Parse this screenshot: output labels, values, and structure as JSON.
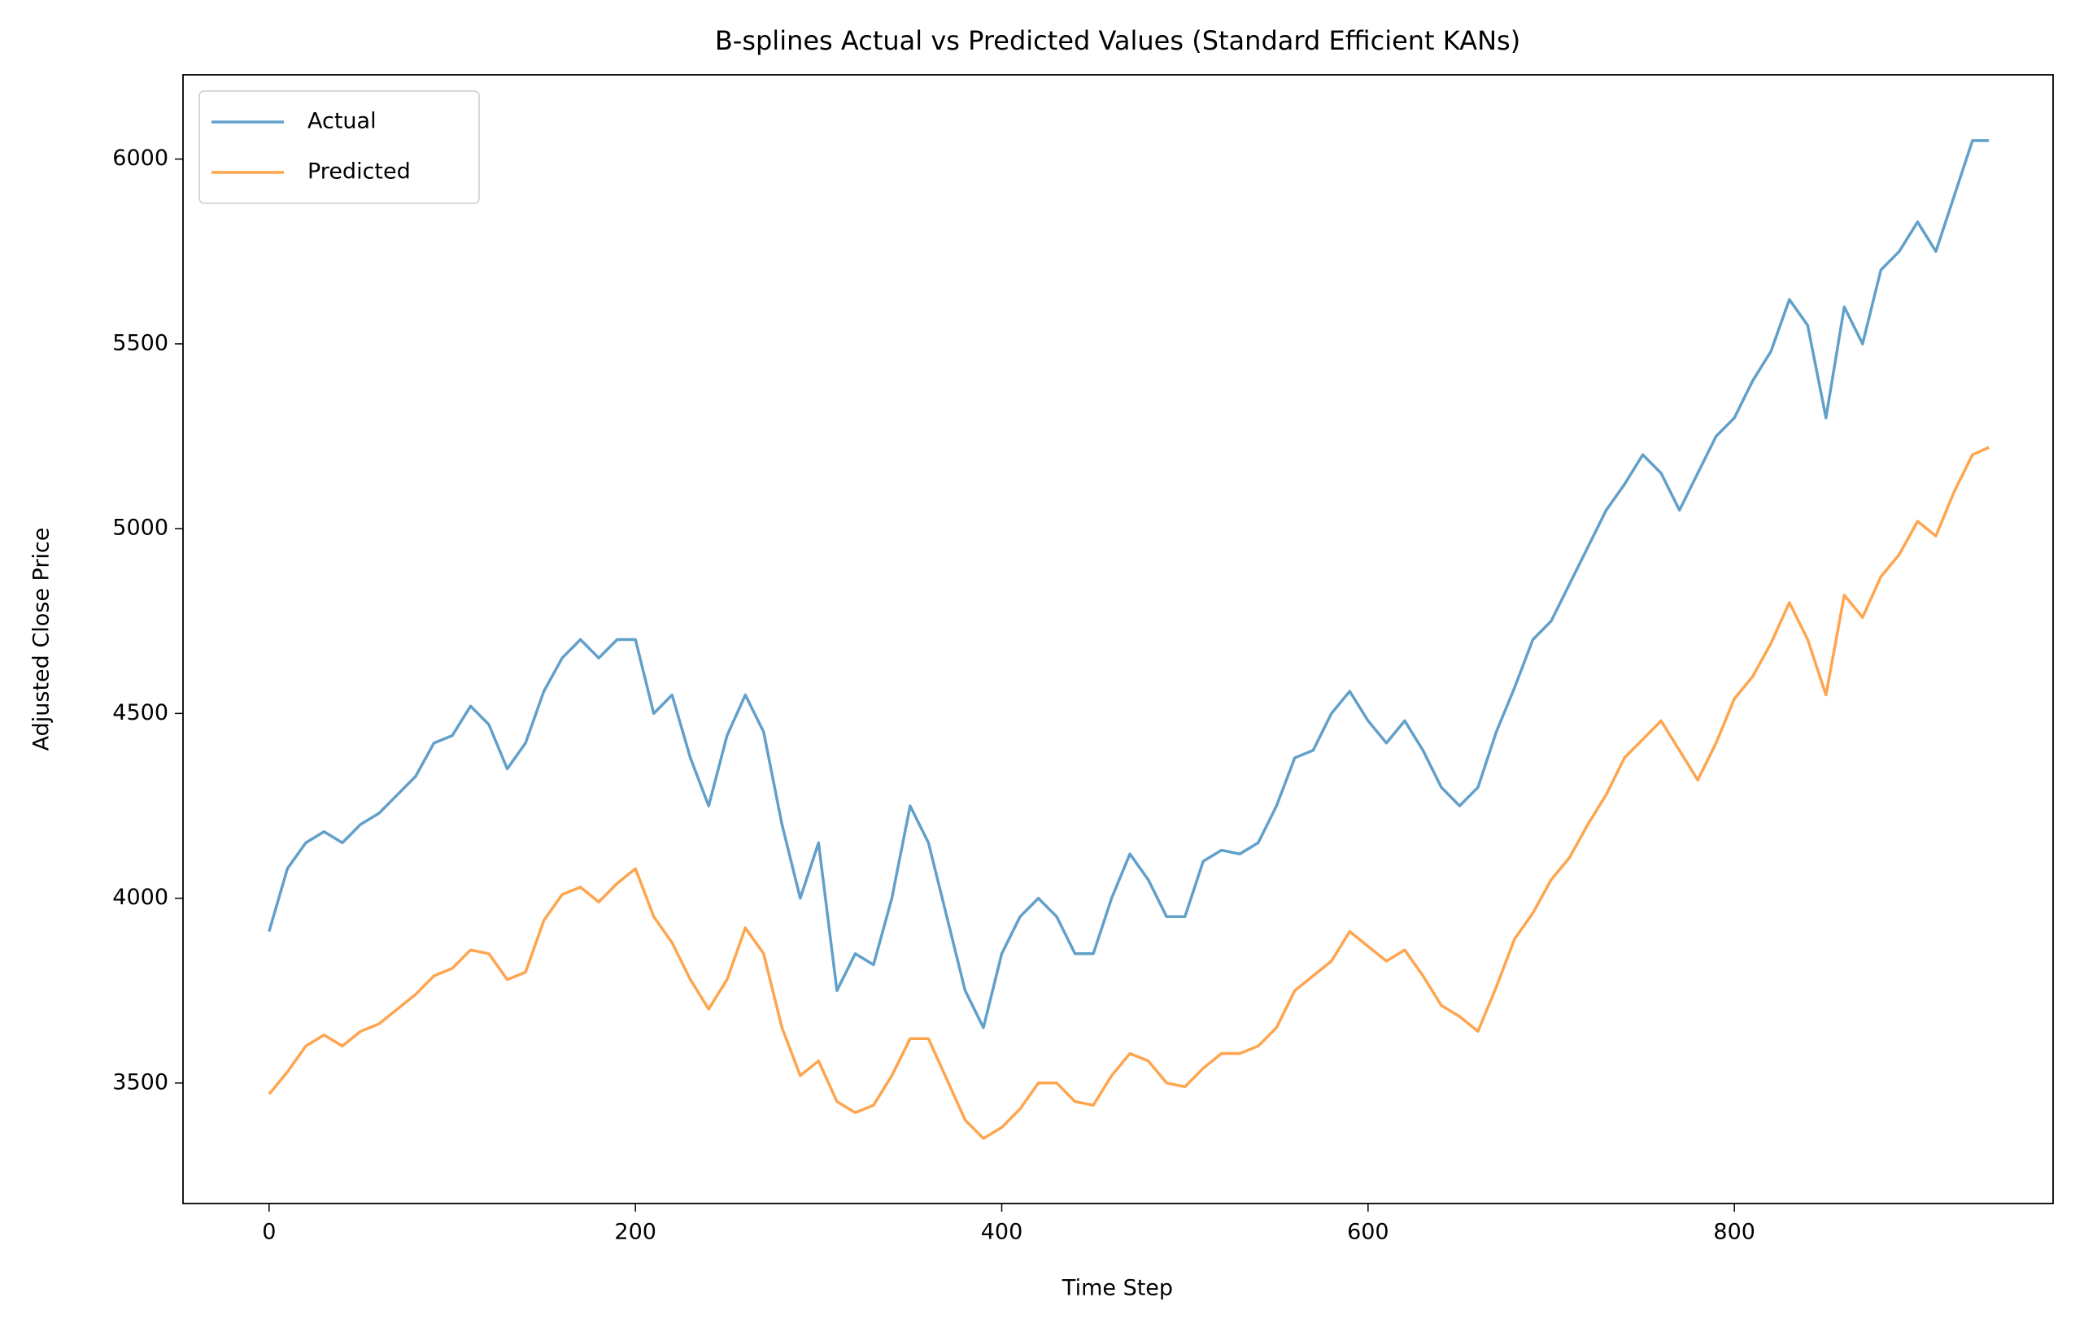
{
  "chart_data": {
    "type": "line",
    "title": "B-splines Actual vs Predicted Values (Standard Efficient KANs)",
    "xlabel": "Time Step",
    "ylabel": "Adjusted Close Price",
    "x": [
      0,
      10,
      20,
      30,
      40,
      50,
      60,
      70,
      80,
      90,
      100,
      110,
      120,
      130,
      140,
      150,
      160,
      170,
      180,
      190,
      200,
      210,
      220,
      230,
      240,
      250,
      260,
      270,
      280,
      290,
      300,
      310,
      320,
      330,
      340,
      350,
      360,
      370,
      380,
      390,
      400,
      410,
      420,
      430,
      440,
      450,
      460,
      470,
      480,
      490,
      500,
      510,
      520,
      530,
      540,
      550,
      560,
      570,
      580,
      590,
      600,
      610,
      620,
      630,
      640,
      650,
      660,
      670,
      680,
      690,
      700,
      710,
      720,
      730,
      740,
      750,
      760,
      770,
      780,
      790,
      800,
      810,
      820,
      830,
      840,
      850,
      860,
      870,
      880,
      890,
      900,
      910,
      920,
      930,
      939
    ],
    "series": [
      {
        "name": "Actual",
        "color": "#62a0ca",
        "values": [
          3910,
          4080,
          4150,
          4180,
          4150,
          4200,
          4230,
          4280,
          4330,
          4420,
          4440,
          4520,
          4470,
          4350,
          4420,
          4560,
          4650,
          4700,
          4650,
          4700,
          4700,
          4500,
          4550,
          4380,
          4250,
          4440,
          4550,
          4450,
          4200,
          4000,
          4150,
          3750,
          3850,
          3820,
          4000,
          4250,
          4150,
          3950,
          3750,
          3650,
          3850,
          3950,
          4000,
          3950,
          3850,
          3850,
          4000,
          4120,
          4050,
          3950,
          3950,
          4100,
          4130,
          4120,
          4150,
          4250,
          4380,
          4400,
          4500,
          4560,
          4480,
          4420,
          4480,
          4400,
          4300,
          4250,
          4300,
          4450,
          4570,
          4700,
          4750,
          4850,
          4950,
          5050,
          5120,
          5200,
          5150,
          5050,
          5150,
          5250,
          5300,
          5400,
          5480,
          5620,
          5550,
          5300,
          5600,
          5500,
          5700,
          5750,
          5830,
          5750,
          5900,
          6050,
          6050
        ]
      },
      {
        "name": "Predicted",
        "color": "#ffa54f",
        "values": [
          3470,
          3530,
          3600,
          3630,
          3600,
          3640,
          3660,
          3700,
          3740,
          3790,
          3810,
          3860,
          3850,
          3780,
          3800,
          3940,
          4010,
          4030,
          3990,
          4040,
          4080,
          3950,
          3880,
          3780,
          3700,
          3780,
          3920,
          3850,
          3650,
          3520,
          3560,
          3450,
          3420,
          3440,
          3520,
          3620,
          3620,
          3510,
          3400,
          3350,
          3380,
          3430,
          3500,
          3500,
          3450,
          3440,
          3520,
          3580,
          3560,
          3500,
          3490,
          3540,
          3580,
          3580,
          3600,
          3650,
          3750,
          3790,
          3830,
          3910,
          3870,
          3830,
          3860,
          3790,
          3710,
          3680,
          3640,
          3760,
          3890,
          3960,
          4050,
          4110,
          4200,
          4280,
          4380,
          4430,
          4480,
          4400,
          4320,
          4420,
          4540,
          4600,
          4690,
          4800,
          4700,
          4550,
          4820,
          4760,
          4870,
          4930,
          5020,
          4980,
          5100,
          5200,
          5220
        ]
      }
    ],
    "xlim": [
      -47,
      974
    ],
    "ylim": [
      3174,
      6228
    ],
    "xticks": [
      0,
      200,
      400,
      600,
      800
    ],
    "yticks": [
      3500,
      4000,
      4500,
      5000,
      5500,
      6000
    ],
    "legend": "upper left",
    "grid": false
  }
}
